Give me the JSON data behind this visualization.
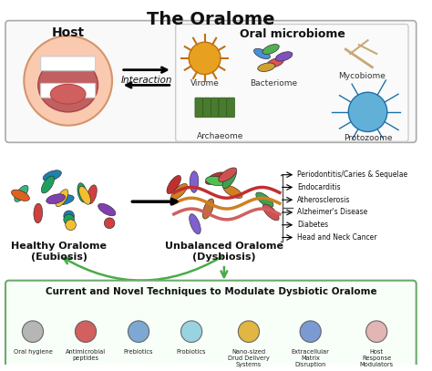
{
  "title": "The Oralome",
  "title_fontsize": 14,
  "title_fontweight": "bold",
  "bg_color": "#ffffff",
  "panel1": {
    "label_host": "Host",
    "interaction_text": "Interaction",
    "oral_microbiome_title": "Oral microbiome",
    "microbiome_items": [
      "Virome",
      "Bacteriome",
      "Mycobiome",
      "Archaeome",
      "Protozoome"
    ],
    "box_color": "#f5f5f5",
    "border_color": "#888888"
  },
  "panel2": {
    "healthy_label": "Healthy Oralome\n(Eubiosis)",
    "unbalanced_label": "Unbalanced Oralome\n(Dysbiosis)",
    "diseases": [
      "Periodontitis/Caries & Sequelae",
      "Endocarditis",
      "Atherosclerosis",
      "Alzheimer's Disease",
      "Diabetes",
      "Head and Neck Cancer"
    ],
    "arrow_color": "#000000",
    "green_arrow_color": "#4aaa4a"
  },
  "panel3": {
    "title": "Current and Novel Techniques to Modulate Dysbiotic Oralome",
    "techniques": [
      "Oral hygiene",
      "Antimicrobial\npeptides",
      "Prebiotics",
      "Probiotics",
      "Nano-sized\nDrud Delivery\nSystems",
      "Extracellular\nMatrix\nDisruption",
      "Host\nResponse\nModulators"
    ],
    "border_color": "#6aaa6a",
    "bg_color": "#f8fff8"
  }
}
